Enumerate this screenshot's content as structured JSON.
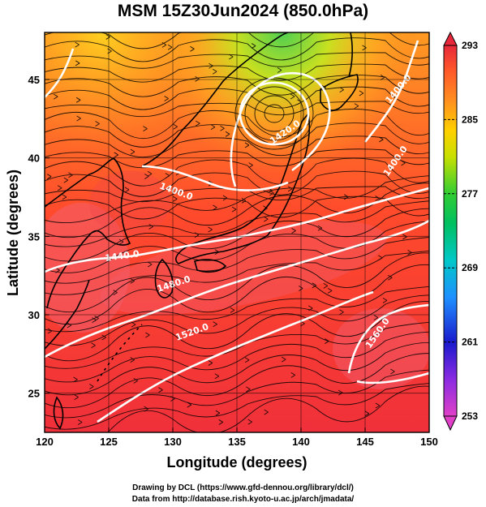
{
  "title": "MSM 15Z30Jun2024 (850.0hPa)",
  "axes": {
    "xlabel": "Longitude (degrees)",
    "ylabel": "Latitude  (degrees)",
    "xlim": [
      120,
      150
    ],
    "ylim": [
      22.5,
      48
    ],
    "xticks": [
      "120",
      "125",
      "130",
      "135",
      "140",
      "145",
      "150"
    ],
    "yticks": [
      "25",
      "30",
      "35",
      "40",
      "45"
    ]
  },
  "colorbar": {
    "min": 253,
    "max": 293,
    "ticks": [
      "293",
      "285",
      "277",
      "269",
      "261",
      "253"
    ],
    "colors": [
      "#e040c8",
      "#8a2be2",
      "#1a1acd",
      "#1e90ff",
      "#00c8c8",
      "#00c060",
      "#32cd32",
      "#c8e000",
      "#ffd000",
      "#ff9020",
      "#ff5a2a",
      "#e8283a"
    ]
  },
  "contours": [
    {
      "label": "1440.0"
    },
    {
      "label": "1480.0"
    },
    {
      "label": "1520.0"
    },
    {
      "label": "1560.0"
    },
    {
      "label": "1420.0"
    },
    {
      "label": "1400.0"
    },
    {
      "label": "1400.0"
    },
    {
      "label": "1400.0"
    }
  ],
  "credits": {
    "line1": "Drawing by DCL (https://www.gfd-dennou.org/library/dcl/)",
    "line2": "Data from http://database.rish.kyoto-u.ac.jp/arch/jmadata/"
  }
}
